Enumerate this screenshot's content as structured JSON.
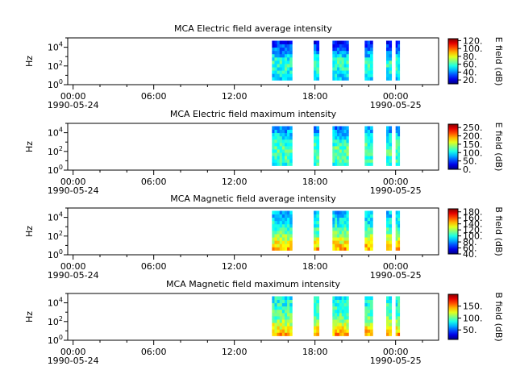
{
  "chart_data": [
    {
      "type": "heatmap",
      "title": "MCA  Electric field average intensity",
      "ylabel": "Hz",
      "y_scale": "log",
      "ylim": [
        1,
        100000
      ],
      "y_ticks": [
        {
          "value": 1,
          "base": "10",
          "exp": "0"
        },
        {
          "value": 100,
          "base": "10",
          "exp": "2"
        },
        {
          "value": 10000,
          "base": "10",
          "exp": "4"
        }
      ],
      "x_ticks": [
        "00:00",
        "06:00",
        "12:00",
        "18:00",
        "00:00"
      ],
      "x_tick_dates": [
        "1990-05-24",
        "",
        "",
        "",
        "1990-05-25"
      ],
      "xlim_hours": [
        -0.4,
        27.2
      ],
      "colorbar": {
        "label": "E field (dB)",
        "range": [
          10,
          125
        ],
        "ticks": [
          20,
          40,
          60,
          80,
          100,
          120
        ],
        "tick_labels": [
          "20.",
          "40.",
          "60.",
          "80.",
          "100.",
          "120."
        ]
      },
      "data_intervals_hours": [
        [
          14.8,
          16.3
        ],
        [
          17.9,
          18.3
        ],
        [
          19.3,
          20.5
        ],
        [
          21.7,
          22.3
        ],
        [
          23.3,
          23.7
        ],
        [
          24.0,
          24.3
        ]
      ],
      "freq_range_hz": [
        3,
        50000
      ],
      "intensity_profile": [
        [
          3,
          45
        ],
        [
          30,
          55
        ],
        [
          300,
          60
        ],
        [
          3000,
          40
        ],
        [
          50000,
          25
        ]
      ]
    },
    {
      "type": "heatmap",
      "title": "MCA  Electric field maximum intensity",
      "ylabel": "Hz",
      "y_scale": "log",
      "ylim": [
        1,
        100000
      ],
      "y_ticks": [
        {
          "value": 1,
          "base": "10",
          "exp": "0"
        },
        {
          "value": 100,
          "base": "10",
          "exp": "2"
        },
        {
          "value": 10000,
          "base": "10",
          "exp": "4"
        }
      ],
      "x_ticks": [
        "00:00",
        "06:00",
        "12:00",
        "18:00",
        "00:00"
      ],
      "x_tick_dates": [
        "1990-05-24",
        "",
        "",
        "",
        "1990-05-25"
      ],
      "xlim_hours": [
        -0.4,
        27.2
      ],
      "colorbar": {
        "label": "E field (dB)",
        "range": [
          0,
          270
        ],
        "ticks": [
          0,
          50,
          100,
          150,
          200,
          250
        ],
        "tick_labels": [
          "0.",
          "50.",
          "100.",
          "150.",
          "200.",
          "250."
        ]
      },
      "data_intervals_hours": [
        [
          14.8,
          16.3
        ],
        [
          17.9,
          18.3
        ],
        [
          19.3,
          20.5
        ],
        [
          21.7,
          22.3
        ],
        [
          23.3,
          23.7
        ],
        [
          24.0,
          24.3
        ]
      ],
      "freq_range_hz": [
        3,
        50000
      ],
      "intensity_profile": [
        [
          3,
          110
        ],
        [
          30,
          120
        ],
        [
          300,
          125
        ],
        [
          3000,
          100
        ],
        [
          50000,
          60
        ]
      ]
    },
    {
      "type": "heatmap",
      "title": "MCA  Magnetic field average intensity",
      "ylabel": "Hz",
      "y_scale": "log",
      "ylim": [
        1,
        100000
      ],
      "y_ticks": [
        {
          "value": 1,
          "base": "10",
          "exp": "0"
        },
        {
          "value": 100,
          "base": "10",
          "exp": "2"
        },
        {
          "value": 10000,
          "base": "10",
          "exp": "4"
        }
      ],
      "x_ticks": [
        "00:00",
        "06:00",
        "12:00",
        "18:00",
        "00:00"
      ],
      "x_tick_dates": [
        "1990-05-24",
        "",
        "",
        "",
        "1990-05-25"
      ],
      "xlim_hours": [
        -0.4,
        27.2
      ],
      "colorbar": {
        "label": "B field (dB)",
        "range": [
          40,
          190
        ],
        "ticks": [
          40,
          60,
          80,
          100,
          120,
          140,
          160,
          180
        ],
        "tick_labels": [
          "40.",
          "60.",
          "80.",
          "100.",
          "120.",
          "140.",
          "160.",
          "180."
        ]
      },
      "data_intervals_hours": [
        [
          14.8,
          16.3
        ],
        [
          17.9,
          18.3
        ],
        [
          19.3,
          20.5
        ],
        [
          21.7,
          22.3
        ],
        [
          23.3,
          23.7
        ],
        [
          24.0,
          24.3
        ]
      ],
      "freq_range_hz": [
        3,
        50000
      ],
      "intensity_profile": [
        [
          3,
          150
        ],
        [
          30,
          130
        ],
        [
          300,
          110
        ],
        [
          3000,
          95
        ],
        [
          50000,
          85
        ]
      ]
    },
    {
      "type": "heatmap",
      "title": "MCA  Magnetic field maximum intensity",
      "ylabel": "Hz",
      "y_scale": "log",
      "ylim": [
        1,
        100000
      ],
      "y_ticks": [
        {
          "value": 1,
          "base": "10",
          "exp": "0"
        },
        {
          "value": 100,
          "base": "10",
          "exp": "2"
        },
        {
          "value": 10000,
          "base": "10",
          "exp": "4"
        }
      ],
      "x_ticks": [
        "00:00",
        "06:00",
        "12:00",
        "18:00",
        "00:00"
      ],
      "x_tick_dates": [
        "1990-05-24",
        "",
        "",
        "",
        "1990-05-25"
      ],
      "xlim_hours": [
        -0.4,
        27.2
      ],
      "colorbar": {
        "label": "B field (dB)",
        "range": [
          10,
          200
        ],
        "ticks": [
          50,
          100,
          150
        ],
        "tick_labels": [
          "50.",
          "100.",
          "150."
        ]
      },
      "data_intervals_hours": [
        [
          14.8,
          16.3
        ],
        [
          17.9,
          18.3
        ],
        [
          19.3,
          20.5
        ],
        [
          21.7,
          22.3
        ],
        [
          23.3,
          23.7
        ],
        [
          24.0,
          24.3
        ]
      ],
      "freq_range_hz": [
        3,
        50000
      ],
      "intensity_profile": [
        [
          3,
          150
        ],
        [
          30,
          125
        ],
        [
          300,
          100
        ],
        [
          3000,
          90
        ],
        [
          50000,
          80
        ]
      ]
    }
  ]
}
